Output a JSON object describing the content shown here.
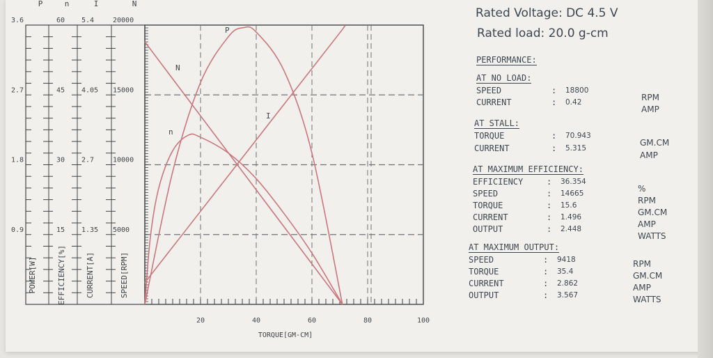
{
  "chart_data": {
    "type": "line",
    "x_axis": {
      "label": "TORQUE[GM-CM]",
      "range": [
        0,
        100
      ],
      "tick_labels": [
        "20",
        "40",
        "60",
        "80",
        "100"
      ],
      "tick_values": [
        20,
        40,
        60,
        80,
        100
      ]
    },
    "y_axes": [
      {
        "symbol": "P",
        "label": "POWER[W]",
        "range": [
          0,
          3.6
        ],
        "tick_labels": [
          "0.9",
          "1.8",
          "2.7",
          "3.6"
        ]
      },
      {
        "symbol": "n",
        "label": "EFFICIENCY[%]",
        "range": [
          0,
          60
        ],
        "tick_labels": [
          "15",
          "30",
          "45",
          "60"
        ]
      },
      {
        "symbol": "I",
        "label": "CURRENT[A]",
        "range": [
          0,
          5.4
        ],
        "tick_labels": [
          "1.35",
          "2.7",
          "4.05",
          "5.4"
        ]
      },
      {
        "symbol": "N",
        "label": "SPEED[RPM]",
        "range": [
          0,
          20000
        ],
        "tick_labels": [
          "5000",
          "10000",
          "15000",
          "20000"
        ]
      }
    ],
    "series": [
      {
        "name": "N",
        "axis": "N",
        "x": [
          0,
          70.943
        ],
        "y": [
          18800,
          0
        ]
      },
      {
        "name": "I",
        "axis": "I",
        "x": [
          0,
          70.943
        ],
        "y": [
          0.42,
          5.315
        ]
      },
      {
        "name": "P",
        "axis": "P",
        "x": [
          0,
          10,
          20,
          30,
          35.4,
          40,
          50,
          60,
          70.943
        ],
        "y": [
          0,
          1.71,
          2.86,
          3.45,
          3.567,
          3.51,
          3.01,
          1.95,
          0
        ]
      },
      {
        "name": "n",
        "axis": "n",
        "x": [
          0,
          2,
          5,
          10,
          15.6,
          20,
          30,
          40,
          50,
          60,
          70.943
        ],
        "y": [
          0,
          14.5,
          25,
          33,
          36.354,
          35.9,
          32.5,
          27,
          19.5,
          11,
          0
        ]
      }
    ],
    "grid": true,
    "dashed_reference_lines": {
      "current": [
        2.7,
        4.05
      ],
      "speed": [
        10000,
        15000
      ]
    }
  },
  "specs": {
    "rated_voltage_label": "Rated Voltage:",
    "rated_voltage_value": "DC 4.5 V",
    "rated_load_label": "Rated load:",
    "rated_load_value": "20.0 g-cm",
    "performance_title": "PERFORMANCE:",
    "no_load": {
      "title": "AT NO LOAD:",
      "rows": [
        {
          "name": "SPEED",
          "value": "18800",
          "unit": "RPM"
        },
        {
          "name": "CURRENT",
          "value": "0.42",
          "unit": "AMP"
        }
      ]
    },
    "stall": {
      "title": "AT STALL:",
      "rows": [
        {
          "name": "TORQUE",
          "value": "70.943",
          "unit": "GM.CM"
        },
        {
          "name": "CURRENT",
          "value": "5.315",
          "unit": "AMP"
        }
      ]
    },
    "max_efficiency": {
      "title": "AT MAXIMUM EFFICIENCY:",
      "rows": [
        {
          "name": "EFFICIENCY",
          "value": "36.354",
          "unit": "%"
        },
        {
          "name": "SPEED",
          "value": "14665",
          "unit": "RPM"
        },
        {
          "name": "TORQUE",
          "value": "15.6",
          "unit": "GM.CM"
        },
        {
          "name": "CURRENT",
          "value": "1.496",
          "unit": "AMP"
        },
        {
          "name": "OUTPUT",
          "value": "2.448",
          "unit": "WATTS"
        }
      ]
    },
    "max_output": {
      "title": "AT MAXIMUM OUTPUT:",
      "rows": [
        {
          "name": "SPEED",
          "value": "9418",
          "unit": "RPM"
        },
        {
          "name": "TORQUE",
          "value": "35.4",
          "unit": "GM.CM"
        },
        {
          "name": "CURRENT",
          "value": "2.862",
          "unit": "AMP"
        },
        {
          "name": "OUTPUT",
          "value": "3.567",
          "unit": "WATTS"
        }
      ]
    }
  },
  "colors": {
    "curve": "#c9777d",
    "ink": "#3f4448",
    "grid": "#6d7276",
    "paper": "#f1f0ec"
  }
}
